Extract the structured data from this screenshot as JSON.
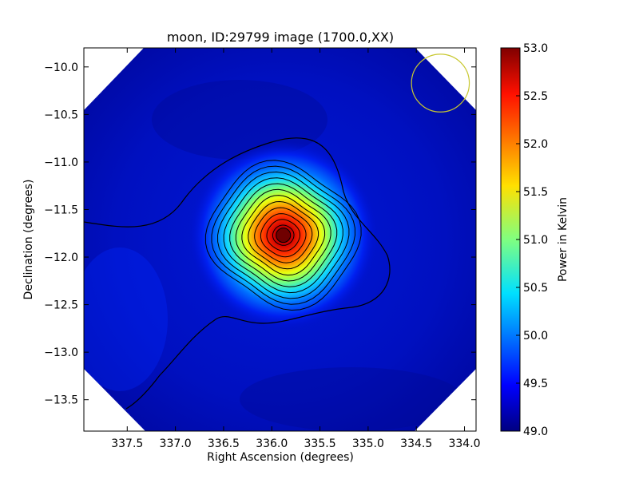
{
  "chart_data": {
    "type": "heatmap",
    "title": "moon, ID:29799 image (1700.0,XX)",
    "xlabel": "Right Ascension (degrees)",
    "ylabel": "Declination (degrees)",
    "xlim": [
      337.95,
      333.88
    ],
    "ylim": [
      -13.83,
      -9.8
    ],
    "x_ticks": [
      337.5,
      337.0,
      336.5,
      336.0,
      335.5,
      335.0,
      334.5,
      334.0
    ],
    "x_tick_labels": [
      "337.5",
      "337.0",
      "336.5",
      "336.0",
      "335.5",
      "335.0",
      "334.5",
      "334.0"
    ],
    "y_ticks": [
      -10.0,
      -10.5,
      -11.0,
      -11.5,
      -12.0,
      -12.5,
      -13.0,
      -13.5
    ],
    "y_tick_labels": [
      "−10.0",
      "−10.5",
      "−11.0",
      "−11.5",
      "−12.0",
      "−12.5",
      "−13.0",
      "−13.5"
    ],
    "colorbar": {
      "label": "Power in Kelvin",
      "range": [
        49.0,
        53.0
      ],
      "ticks": [
        49.0,
        49.5,
        50.0,
        50.5,
        51.0,
        51.5,
        52.0,
        52.5,
        53.0
      ],
      "tick_labels": [
        "49.0",
        "49.5",
        "50.0",
        "50.5",
        "51.0",
        "51.5",
        "52.0",
        "52.5",
        "53.0"
      ],
      "colormap": "jet"
    },
    "source_peak": {
      "ra": 335.88,
      "dec": -11.77,
      "value": 53.0
    },
    "background_level": 49.3,
    "beam_circle": {
      "ra": 334.25,
      "dec": -10.17,
      "radius_deg": 0.3,
      "color": "#c8c830"
    },
    "grid": false
  }
}
